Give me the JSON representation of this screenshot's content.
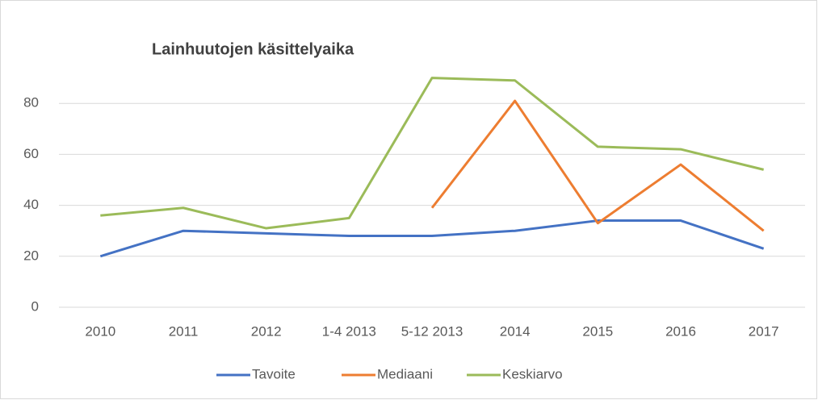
{
  "chart_data": {
    "type": "line",
    "title": "Lainhuutojen käsittelyaika",
    "categories": [
      "2010",
      "2011",
      "2012",
      "1-4 2013",
      "5-12 2013",
      "2014",
      "2015",
      "2016",
      "2017"
    ],
    "series": [
      {
        "name": "Tavoite",
        "color": "#4472c4",
        "values": [
          20,
          30,
          29,
          28,
          28,
          30,
          34,
          34,
          23
        ]
      },
      {
        "name": "Mediaani",
        "color": "#ed7d31",
        "values": [
          null,
          null,
          null,
          null,
          39,
          81,
          33,
          56,
          30
        ]
      },
      {
        "name": "Keskiarvo",
        "color": "#9bbb59",
        "values": [
          36,
          39,
          31,
          35,
          90,
          89,
          63,
          62,
          54
        ]
      }
    ],
    "ylim": [
      0,
      100
    ],
    "yticks": [
      0,
      20,
      40,
      60,
      80
    ],
    "grid": true,
    "legend": "bottom"
  }
}
